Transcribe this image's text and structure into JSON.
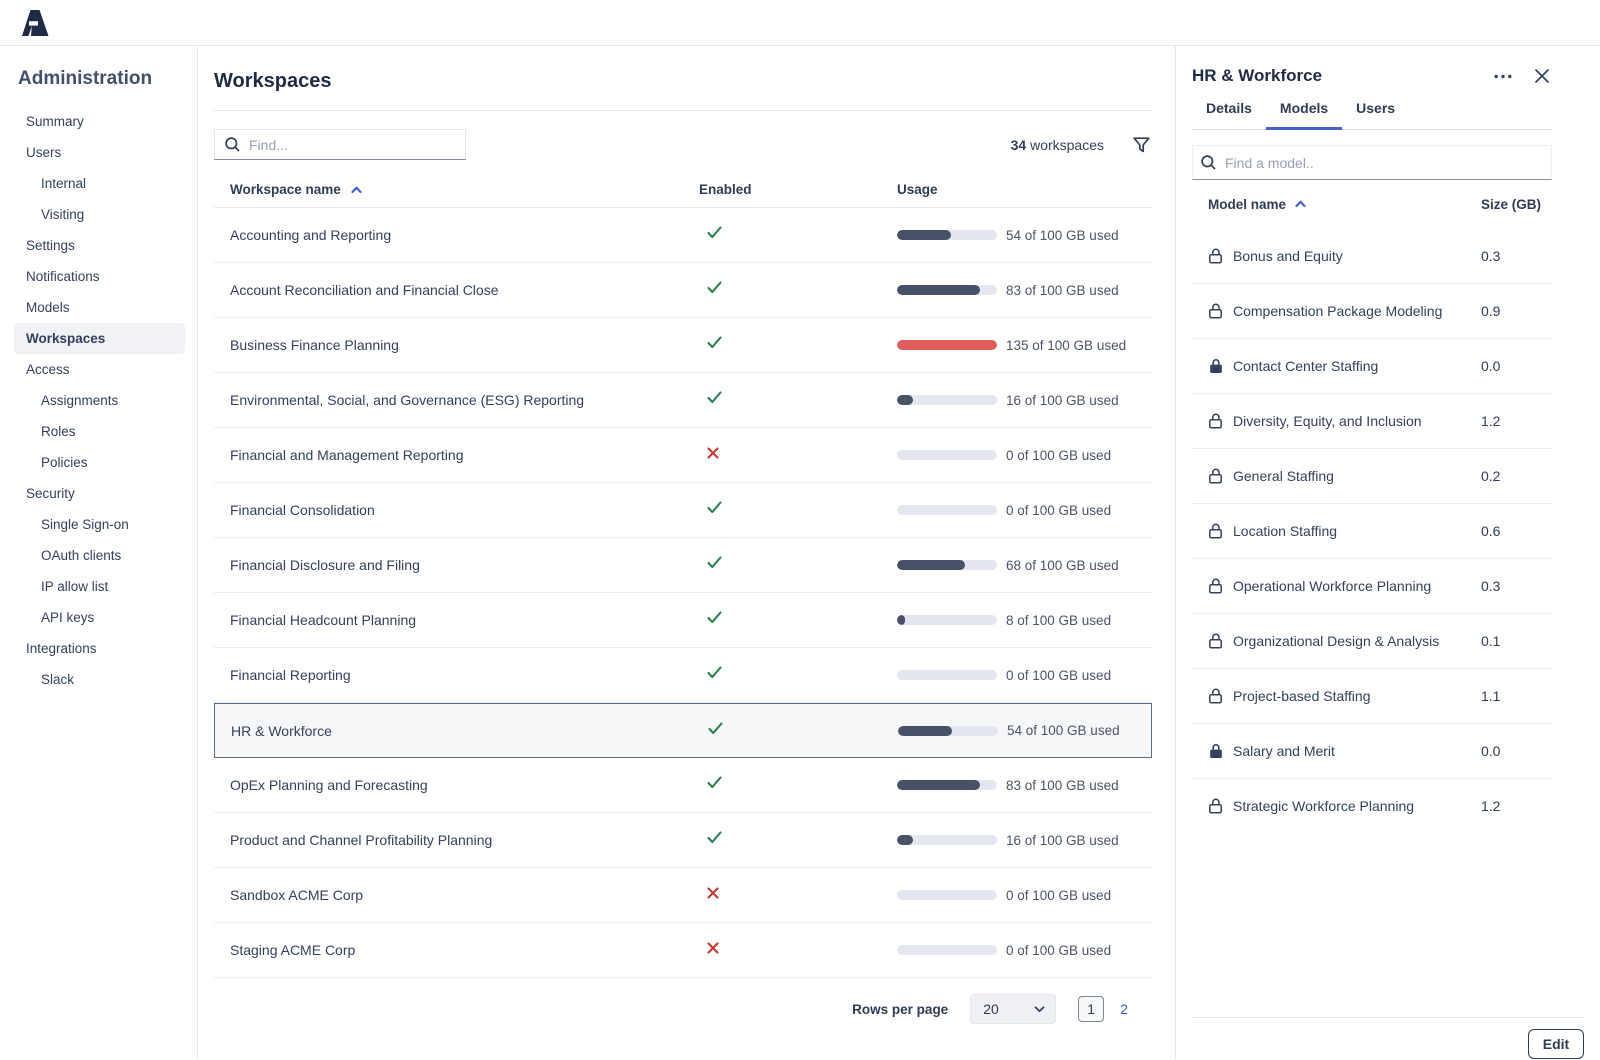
{
  "sidebar": {
    "title": "Administration",
    "items": [
      {
        "label": "Summary",
        "level": 0,
        "selected": false
      },
      {
        "label": "Users",
        "level": 0,
        "selected": false
      },
      {
        "label": "Internal",
        "level": 1,
        "selected": false
      },
      {
        "label": "Visiting",
        "level": 1,
        "selected": false
      },
      {
        "label": "Settings",
        "level": 0,
        "selected": false
      },
      {
        "label": "Notifications",
        "level": 0,
        "selected": false
      },
      {
        "label": "Models",
        "level": 0,
        "selected": false
      },
      {
        "label": "Workspaces",
        "level": 0,
        "selected": true
      },
      {
        "label": "Access",
        "level": 0,
        "selected": false
      },
      {
        "label": "Assignments",
        "level": 1,
        "selected": false
      },
      {
        "label": "Roles",
        "level": 1,
        "selected": false
      },
      {
        "label": "Policies",
        "level": 1,
        "selected": false
      },
      {
        "label": "Security",
        "level": 0,
        "selected": false
      },
      {
        "label": "Single Sign-on",
        "level": 1,
        "selected": false
      },
      {
        "label": "OAuth clients",
        "level": 1,
        "selected": false
      },
      {
        "label": "IP allow list",
        "level": 1,
        "selected": false
      },
      {
        "label": "API keys",
        "level": 1,
        "selected": false
      },
      {
        "label": "Integrations",
        "level": 0,
        "selected": false
      },
      {
        "label": "Slack",
        "level": 1,
        "selected": false
      }
    ]
  },
  "main": {
    "title": "Workspaces",
    "search_placeholder": "Find...",
    "count_value": "34",
    "count_label": "workspaces",
    "columns": {
      "name": "Workspace name",
      "enabled": "Enabled",
      "usage": "Usage"
    },
    "rows": [
      {
        "name": "Accounting and Reporting",
        "enabled": true,
        "used": 54,
        "total": 100,
        "usage_text": "54 of 100 GB used",
        "selected": false
      },
      {
        "name": "Account Reconciliation and Financial Close",
        "enabled": true,
        "used": 83,
        "total": 100,
        "usage_text": "83 of 100 GB used",
        "selected": false
      },
      {
        "name": "Business Finance Planning",
        "enabled": true,
        "used": 135,
        "total": 100,
        "usage_text": "135 of 100 GB used",
        "selected": false
      },
      {
        "name": "Environmental, Social, and Governance (ESG) Reporting",
        "enabled": true,
        "used": 16,
        "total": 100,
        "usage_text": "16 of 100 GB used",
        "selected": false
      },
      {
        "name": "Financial and Management Reporting",
        "enabled": false,
        "used": 0,
        "total": 100,
        "usage_text": "0 of 100 GB used",
        "selected": false
      },
      {
        "name": "Financial Consolidation",
        "enabled": true,
        "used": 0,
        "total": 100,
        "usage_text": "0 of 100 GB used",
        "selected": false
      },
      {
        "name": "Financial Disclosure and Filing",
        "enabled": true,
        "used": 68,
        "total": 100,
        "usage_text": "68 of 100 GB used",
        "selected": false
      },
      {
        "name": "Financial Headcount Planning",
        "enabled": true,
        "used": 8,
        "total": 100,
        "usage_text": "8 of 100 GB used",
        "selected": false
      },
      {
        "name": "Financial Reporting",
        "enabled": true,
        "used": 0,
        "total": 100,
        "usage_text": "0 of 100 GB used",
        "selected": false
      },
      {
        "name": "HR & Workforce",
        "enabled": true,
        "used": 54,
        "total": 100,
        "usage_text": "54 of 100 GB used",
        "selected": true
      },
      {
        "name": "OpEx Planning and Forecasting",
        "enabled": true,
        "used": 83,
        "total": 100,
        "usage_text": "83 of 100 GB used",
        "selected": false
      },
      {
        "name": "Product and Channel Profitability Planning",
        "enabled": true,
        "used": 16,
        "total": 100,
        "usage_text": "16 of 100 GB used",
        "selected": false
      },
      {
        "name": "Sandbox ACME Corp",
        "enabled": false,
        "used": 0,
        "total": 100,
        "usage_text": "0 of 100 GB used",
        "selected": false
      },
      {
        "name": "Staging ACME Corp",
        "enabled": false,
        "used": 0,
        "total": 100,
        "usage_text": "0 of 100 GB used",
        "selected": false
      }
    ],
    "pagination": {
      "rows_per_page_label": "Rows per page",
      "rows_per_page_value": "20",
      "pages": [
        "1",
        "2"
      ],
      "current_page": "1"
    }
  },
  "panel": {
    "title": "HR & Workforce",
    "tabs": [
      {
        "label": "Details",
        "active": false
      },
      {
        "label": "Models",
        "active": true
      },
      {
        "label": "Users",
        "active": false
      }
    ],
    "search_placeholder": "Find a model..",
    "columns": {
      "name": "Model name",
      "size": "Size (GB)"
    },
    "models": [
      {
        "name": "Bonus and Equity",
        "size": "0.3",
        "locked": false
      },
      {
        "name": "Compensation Package Modeling",
        "size": "0.9",
        "locked": false
      },
      {
        "name": "Contact Center Staffing",
        "size": "0.0",
        "locked": true
      },
      {
        "name": "Diversity, Equity, and Inclusion",
        "size": "1.2",
        "locked": false
      },
      {
        "name": "General Staffing",
        "size": "0.2",
        "locked": false
      },
      {
        "name": "Location Staffing",
        "size": "0.6",
        "locked": false
      },
      {
        "name": "Operational Workforce Planning",
        "size": "0.3",
        "locked": false
      },
      {
        "name": "Organizational Design & Analysis",
        "size": "0.1",
        "locked": false
      },
      {
        "name": "Project-based Staffing",
        "size": "1.1",
        "locked": false
      },
      {
        "name": "Salary and Merit",
        "size": "0.0",
        "locked": true
      },
      {
        "name": "Strategic Workforce Planning",
        "size": "1.2",
        "locked": false
      }
    ],
    "edit_label": "Edit"
  },
  "colors": {
    "accent_blue": "#4161d1",
    "bar_navy": "#475269",
    "bar_over_red": "#e25c5c",
    "bar_track": "#e4e7f0",
    "check_green": "#2a7e4f",
    "cross_red": "#c13c33",
    "text_dark": "#33415e"
  }
}
